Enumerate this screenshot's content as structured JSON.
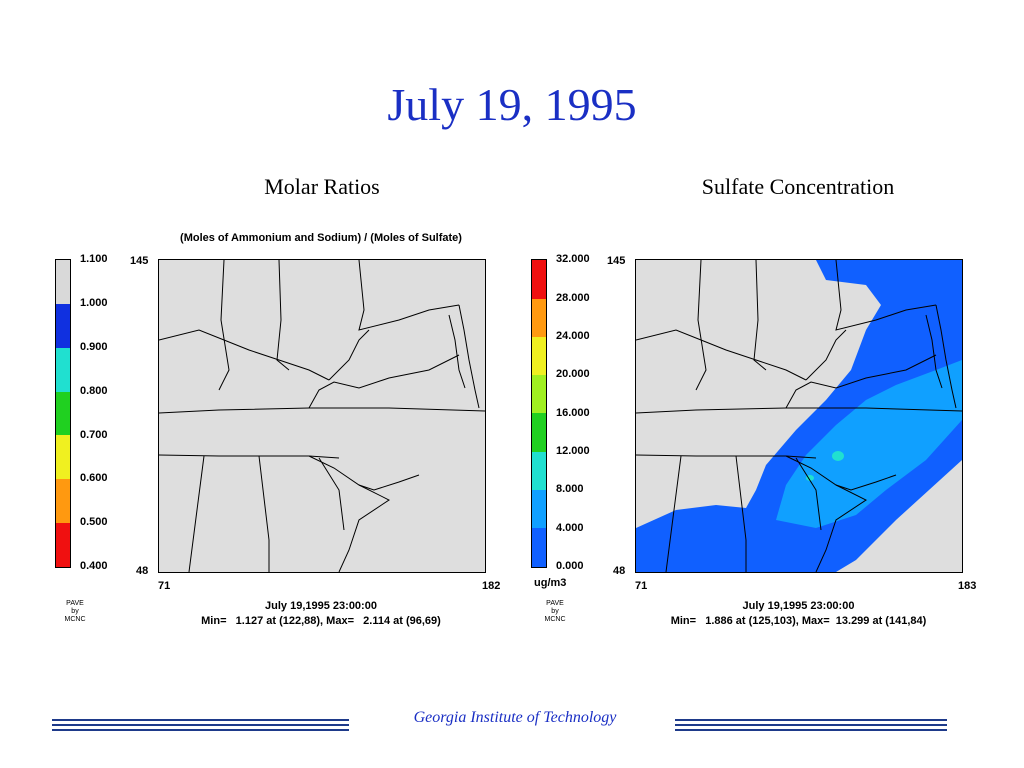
{
  "title": "July 19, 1995",
  "left_panel": {
    "title": "Molar Ratios",
    "subtitle": "(Moles of Ammonium and Sodium) / (Moles of Sulfate)",
    "colorbar_labels": [
      "1.100",
      "1.000",
      "0.900",
      "0.800",
      "0.700",
      "0.600",
      "0.500",
      "0.400"
    ],
    "colorbar_colors": [
      "#d9d9d9",
      "#1030e0",
      "#20e0d0",
      "#20d020",
      "#f0f020",
      "#ff9910",
      "#f01010"
    ],
    "y_top": "145",
    "y_bottom": "48",
    "x_left": "71",
    "x_right": "182",
    "date": "July 19,1995 23:00:00",
    "minmax": "Min=   1.127 at (122,88), Max=   2.114 at (96,69)",
    "credit": [
      "PAVE",
      "by",
      "MCNC"
    ]
  },
  "right_panel": {
    "title": "Sulfate Concentration",
    "colorbar_labels": [
      "32.000",
      "28.000",
      "24.000",
      "20.000",
      "16.000",
      "12.000",
      "8.000",
      "4.000",
      "0.000"
    ],
    "colorbar_colors": [
      "#f01010",
      "#ff9910",
      "#f0f020",
      "#a0f020",
      "#20d020",
      "#20e0d0",
      "#10a0ff",
      "#1060ff",
      "#d9d9d9"
    ],
    "unit": "ug/m3",
    "y_top": "145",
    "y_bottom": "48",
    "x_left": "71",
    "x_right": "183",
    "date": "July 19,1995 23:00:00",
    "minmax": "Min=   1.886 at (125,103), Max=  13.299 at (141,84)",
    "credit": [
      "PAVE",
      "by",
      "MCNC"
    ]
  },
  "footer": "Georgia Institute of Technology"
}
